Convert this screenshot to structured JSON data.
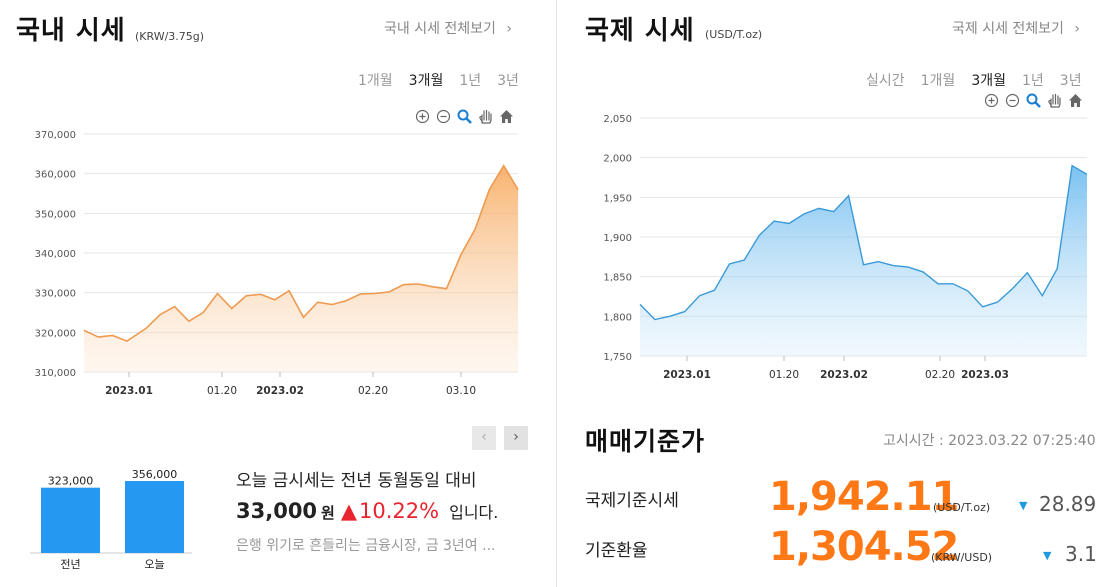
{
  "domestic": {
    "title": "국내 시세",
    "unit": "(KRW/3.75g)",
    "view_all": "국내 시세 전체보기",
    "chevron": "›",
    "period_tabs": [
      "1개월",
      "3개월",
      "1년",
      "3년"
    ],
    "active_tab": "3개월",
    "chart": {
      "y_ticks": [
        "370,000",
        "360,000",
        "350,000",
        "340,000",
        "330,000",
        "320,000",
        "310,000"
      ],
      "x_labels": [
        "2023.01",
        "01.20",
        "2023.02",
        "02.20",
        "03.10"
      ]
    },
    "nav_prev": "‹",
    "nav_next": "›",
    "compare_bars": {
      "bars": [
        {
          "value_label": "323,000",
          "name": "전년",
          "value": 323000
        },
        {
          "value_label": "356,000",
          "name": "오늘",
          "value": 356000
        }
      ]
    },
    "compare_text": {
      "line1": "오늘 금시세는 전년 동월동일 대비",
      "amount": "33,000",
      "won": "원",
      "arrow": "▲",
      "percent": "10.22%",
      "tail": "입니다."
    },
    "news": "은행 위기로 흔들리는 금융시장, 금 3년여 ..."
  },
  "international": {
    "title": "국제 시세",
    "unit": "(USD/T.oz)",
    "view_all": "국제 시세 전체보기",
    "chevron": "›",
    "period_tabs": [
      "실시간",
      "1개월",
      "3개월",
      "1년",
      "3년"
    ],
    "active_tab": "3개월",
    "chart": {
      "y_ticks": [
        "2,050",
        "2,000",
        "1,950",
        "1,900",
        "1,850",
        "1,800",
        "1,750"
      ],
      "x_labels": [
        "2023.01",
        "01.20",
        "2023.02",
        "02.20",
        "2023.03"
      ]
    }
  },
  "standard": {
    "title": "매매기준가",
    "notice_time": "고시시간 : 2023.03.22 07:25:40",
    "rows": [
      {
        "label": "국제기준시세",
        "value": "1,942.11",
        "unit": "(USD/T.oz)",
        "arrow": "▼",
        "change": "28.89"
      },
      {
        "label": "기준환율",
        "value": "1,304.52",
        "unit": "(KRW/USD)",
        "arrow": "▼",
        "change": "3.1"
      }
    ]
  },
  "colors": {
    "domestic_line": "#f0a055",
    "intl_line": "#4aa3e0",
    "bar_fill": "#2599f2",
    "value_orange": "#ff7816",
    "up_red": "#e8242e",
    "down_blue": "#1e9be0"
  },
  "chart_data": [
    {
      "type": "area",
      "ylim": [
        310000,
        370000
      ],
      "x": [
        "2022-12-20",
        "2022-12-23",
        "2022-12-26",
        "2022-12-29",
        "2023-01-02",
        "2023-01-05",
        "2023-01-08",
        "2023-01-11",
        "2023-01-14",
        "2023-01-17",
        "2023-01-20",
        "2023-01-23",
        "2023-01-26",
        "2023-01-29",
        "2023-02-01",
        "2023-02-04",
        "2023-02-07",
        "2023-02-10",
        "2023-02-13",
        "2023-02-16",
        "2023-02-19",
        "2023-02-22",
        "2023-02-25",
        "2023-02-28",
        "2023-03-03",
        "2023-03-06",
        "2023-03-09",
        "2023-03-12",
        "2023-03-15",
        "2023-03-18",
        "2023-03-21"
      ],
      "series": [
        {
          "values": [
            320500,
            318800,
            319200,
            317800,
            321000,
            324500,
            326500,
            322800,
            325000,
            329800,
            326000,
            329200,
            329600,
            328200,
            330500,
            323800,
            327600,
            327000,
            328000,
            329700,
            329800,
            330200,
            332000,
            332200,
            331500,
            331000,
            339500,
            346000,
            356000,
            362000,
            356000
          ]
        }
      ]
    },
    {
      "type": "area",
      "ylim": [
        1750,
        2050
      ],
      "x": [
        "2022-12-21",
        "2022-12-24",
        "2022-12-27",
        "2022-12-30",
        "2023-01-02",
        "2023-01-05",
        "2023-01-08",
        "2023-01-11",
        "2023-01-14",
        "2023-01-17",
        "2023-01-20",
        "2023-01-23",
        "2023-01-26",
        "2023-01-29",
        "2023-02-01",
        "2023-02-04",
        "2023-02-07",
        "2023-02-10",
        "2023-02-13",
        "2023-02-16",
        "2023-02-19",
        "2023-02-22",
        "2023-02-25",
        "2023-02-28",
        "2023-03-03",
        "2023-03-06",
        "2023-03-09",
        "2023-03-12",
        "2023-03-15",
        "2023-03-18",
        "2023-03-21"
      ],
      "series": [
        {
          "values": [
            1815,
            1796,
            1800,
            1806,
            1826,
            1833,
            1866,
            1871,
            1902,
            1920,
            1917,
            1929,
            1936,
            1932,
            1952,
            1865,
            1869,
            1864,
            1862,
            1856,
            1841,
            1841,
            1832,
            1812,
            1818,
            1835,
            1855,
            1826,
            1860,
            1990,
            1979
          ]
        }
      ]
    }
  ]
}
